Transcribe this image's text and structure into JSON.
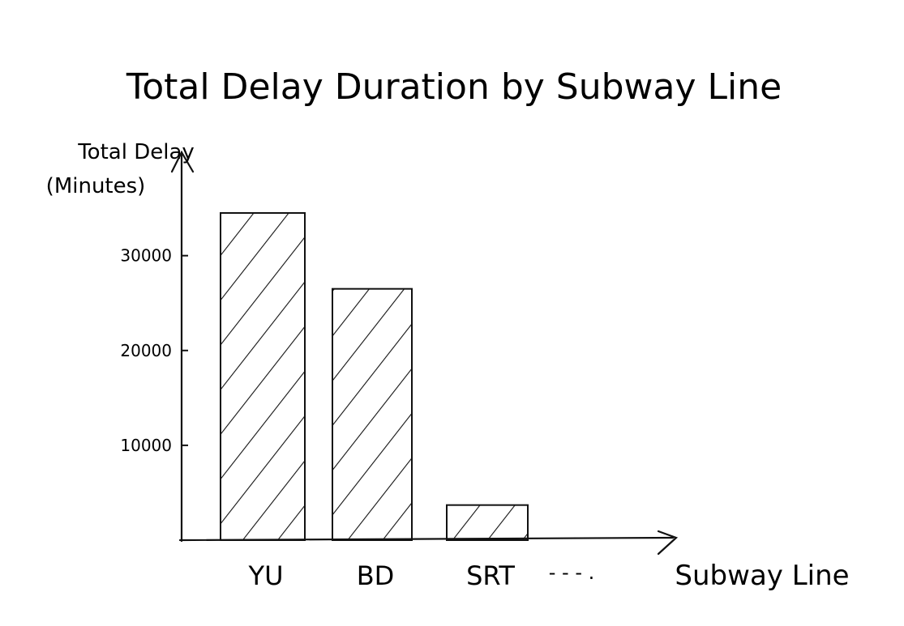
{
  "chart_data": {
    "type": "bar",
    "title": "Total Delay Duration by Subway Line",
    "ylabel_line1": "Total Delay",
    "ylabel_line2": "(Minutes)",
    "xlabel": "Subway Line",
    "categories": [
      "YU",
      "BD",
      "SRT"
    ],
    "values": [
      34500,
      26500,
      3700
    ],
    "continuation": "- - - .",
    "yticks": [
      10000,
      20000,
      30000
    ],
    "ytick_labels": [
      "10000",
      "20000",
      "30000"
    ],
    "ylim": [
      0,
      38000
    ],
    "grid": false,
    "bar_pattern": "diagonal-hatch",
    "colors": {
      "ink": "#111111",
      "background": "#ffffff"
    }
  }
}
